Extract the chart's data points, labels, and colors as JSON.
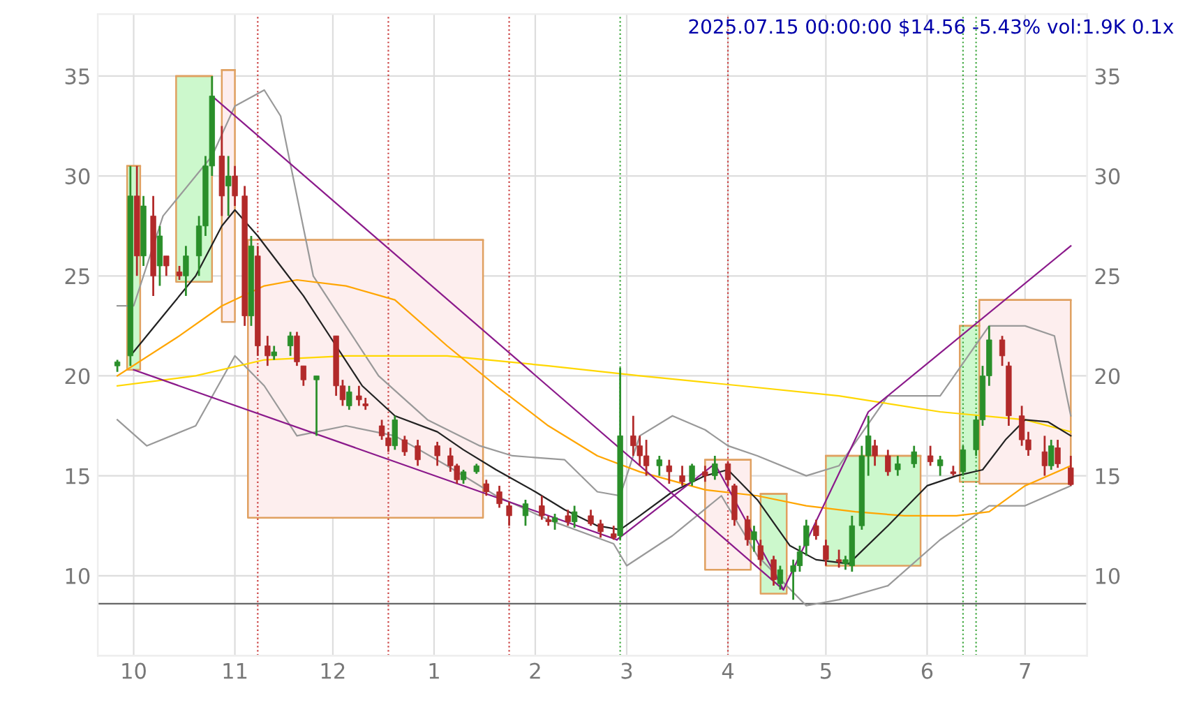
{
  "chart_data": {
    "type": "candlestick",
    "title": "2025.07.15 00:00:00 $14.56 -5.43% vol:1.9K 0.1x",
    "x": [
      "2024-09-26",
      "2024-09-30",
      "2024-10-02",
      "2024-10-04",
      "2024-10-07",
      "2024-10-09",
      "2024-10-11",
      "2024-10-15",
      "2024-10-17",
      "2024-10-21",
      "2024-10-23",
      "2024-10-25",
      "2024-10-28",
      "2024-10-30",
      "2024-11-01",
      "2024-11-04",
      "2024-11-06",
      "2024-11-08",
      "2024-11-11",
      "2024-11-13",
      "2024-11-18",
      "2024-11-20",
      "2024-11-22",
      "2024-11-26",
      "2024-12-02",
      "2024-12-04",
      "2024-12-06",
      "2024-12-09",
      "2024-12-11",
      "2024-12-16",
      "2024-12-18",
      "2024-12-20",
      "2024-12-23",
      "2024-12-27",
      "2025-01-02",
      "2025-01-06",
      "2025-01-08",
      "2025-01-10",
      "2025-01-14",
      "2025-01-17",
      "2025-01-21",
      "2025-01-24",
      "2025-01-29",
      "2025-02-03",
      "2025-02-05",
      "2025-02-07",
      "2025-02-11",
      "2025-02-13",
      "2025-02-18",
      "2025-02-21",
      "2025-02-25",
      "2025-02-27",
      "2025-03-03",
      "2025-03-05",
      "2025-03-07",
      "2025-03-11",
      "2025-03-14",
      "2025-03-18",
      "2025-03-21",
      "2025-03-25",
      "2025-03-28",
      "2025-04-01",
      "2025-04-03",
      "2025-04-07",
      "2025-04-09",
      "2025-04-11",
      "2025-04-15",
      "2025-04-17",
      "2025-04-21",
      "2025-04-23",
      "2025-04-25",
      "2025-04-28",
      "2025-05-01",
      "2025-05-05",
      "2025-05-07",
      "2025-05-09",
      "2025-05-12",
      "2025-05-14",
      "2025-05-16",
      "2025-05-20",
      "2025-05-23",
      "2025-05-28",
      "2025-06-02",
      "2025-06-05",
      "2025-06-09",
      "2025-06-12",
      "2025-06-16",
      "2025-06-18",
      "2025-06-20",
      "2025-06-24",
      "2025-06-26",
      "2025-06-30",
      "2025-07-02",
      "2025-07-07",
      "2025-07-09",
      "2025-07-11",
      "2025-07-15"
    ],
    "ohlc": [
      [
        20.5,
        20.8,
        20.2,
        20.7
      ],
      [
        21,
        30.5,
        20.5,
        29
      ],
      [
        29,
        30.5,
        25,
        26
      ],
      [
        26,
        29,
        25.5,
        28.5
      ],
      [
        28,
        29,
        24,
        25
      ],
      [
        25.5,
        27.5,
        24.5,
        27
      ],
      [
        26,
        26,
        25,
        25.5
      ],
      [
        25.2,
        25.5,
        24.8,
        25
      ],
      [
        25,
        26.5,
        24,
        26
      ],
      [
        26,
        28,
        25,
        27.5
      ],
      [
        27.5,
        31,
        27,
        30.5
      ],
      [
        30.5,
        35,
        30,
        34
      ],
      [
        31,
        32.5,
        28,
        29
      ],
      [
        29.5,
        31,
        28,
        30
      ],
      [
        30,
        30.5,
        28.5,
        29
      ],
      [
        29,
        29.5,
        22.5,
        23
      ],
      [
        23,
        27,
        22.5,
        26.5
      ],
      [
        26,
        26.5,
        21,
        21.5
      ],
      [
        21.5,
        22,
        20.5,
        21
      ],
      [
        21,
        21.5,
        20.8,
        21.2
      ],
      [
        21.5,
        22.2,
        21,
        22
      ],
      [
        22,
        22.2,
        20.5,
        20.7
      ],
      [
        20.5,
        20.5,
        19.5,
        19.8
      ],
      [
        19.8,
        20,
        17,
        20
      ],
      [
        22,
        22,
        19,
        19.5
      ],
      [
        19.5,
        19.8,
        18.5,
        18.8
      ],
      [
        18.5,
        19.5,
        18.3,
        19.2
      ],
      [
        19,
        19.5,
        18.5,
        18.8
      ],
      [
        18.6,
        18.9,
        18.3,
        18.5
      ],
      [
        17.5,
        17.8,
        16.8,
        17
      ],
      [
        16.9,
        17.2,
        16.2,
        16.5
      ],
      [
        16.5,
        18,
        16.3,
        17.8
      ],
      [
        16.8,
        17,
        16,
        16.2
      ],
      [
        16.5,
        16.8,
        15.5,
        15.8
      ],
      [
        16.5,
        16.7,
        15.5,
        16
      ],
      [
        16,
        16.4,
        15.2,
        15.5
      ],
      [
        15.5,
        15.6,
        14.6,
        14.8
      ],
      [
        14.8,
        15.3,
        14.6,
        15.2
      ],
      [
        15.2,
        15.6,
        15.1,
        15.5
      ],
      [
        14.6,
        14.8,
        14,
        14.2
      ],
      [
        14.2,
        14.5,
        13.4,
        13.6
      ],
      [
        13.5,
        13.7,
        12.5,
        13
      ],
      [
        13,
        13.8,
        12.5,
        13.6
      ],
      [
        13.5,
        14,
        12.8,
        13
      ],
      [
        12.8,
        13,
        12.5,
        12.7
      ],
      [
        12.7,
        13.1,
        12.3,
        12.9
      ],
      [
        13,
        13.3,
        12.5,
        12.7
      ],
      [
        12.7,
        13.5,
        12.4,
        13.2
      ],
      [
        13,
        13.3,
        12.5,
        12.6
      ],
      [
        12.6,
        12.8,
        11.9,
        12.2
      ],
      [
        12.1,
        12.5,
        11.8,
        11.9
      ],
      [
        12,
        20.4,
        11.8,
        17
      ],
      [
        17,
        18,
        16,
        16.5
      ],
      [
        16.5,
        17,
        15.5,
        16
      ],
      [
        16,
        16.8,
        15,
        15.5
      ],
      [
        15.5,
        16,
        15,
        15.8
      ],
      [
        15.5,
        15.8,
        14.6,
        15.2
      ],
      [
        15,
        15.5,
        14.5,
        14.7
      ],
      [
        14.7,
        15.6,
        14.5,
        15.5
      ],
      [
        15.2,
        15.5,
        14.7,
        15
      ],
      [
        15,
        16,
        14.8,
        15.6
      ],
      [
        15.6,
        15.7,
        14.5,
        14.8
      ],
      [
        14.5,
        14.6,
        12.5,
        12.8
      ],
      [
        12.8,
        13,
        11.5,
        11.8
      ],
      [
        11.8,
        12.5,
        11.2,
        12.2
      ],
      [
        11.5,
        11.8,
        10.5,
        10.8
      ],
      [
        10.8,
        11,
        9.5,
        9.8
      ],
      [
        9.6,
        10.5,
        9.3,
        10.3
      ],
      [
        10.2,
        10.8,
        8.8,
        10.5
      ],
      [
        10.5,
        11.5,
        10.2,
        11.2
      ],
      [
        11.5,
        12.8,
        11,
        12.5
      ],
      [
        12.5,
        12.8,
        11.8,
        12
      ],
      [
        11.5,
        11.8,
        10.5,
        10.8
      ],
      [
        10.8,
        11.3,
        10.4,
        10.7
      ],
      [
        10.6,
        11,
        10.3,
        10.8
      ],
      [
        10.5,
        13,
        10.2,
        12.5
      ],
      [
        12.5,
        16.5,
        12.3,
        16
      ],
      [
        16,
        18,
        15,
        17
      ],
      [
        16.5,
        16.8,
        15.5,
        16
      ],
      [
        16,
        16.3,
        15,
        15.2
      ],
      [
        15.3,
        16,
        15,
        15.6
      ],
      [
        15.6,
        16.5,
        15.4,
        16.2
      ],
      [
        16,
        16.5,
        15.5,
        15.7
      ],
      [
        15.5,
        16,
        15,
        15.8
      ],
      [
        15.2,
        15.5,
        15,
        15.1
      ],
      [
        15.2,
        16.5,
        15,
        16.3
      ],
      [
        16.3,
        18,
        16,
        17.8
      ],
      [
        17.8,
        20.5,
        17.5,
        20
      ],
      [
        20,
        22.5,
        19.5,
        21.8
      ],
      [
        21.8,
        22,
        20.5,
        21
      ],
      [
        20.5,
        20.7,
        17.5,
        18
      ],
      [
        18,
        18.5,
        16.5,
        16.8
      ],
      [
        16.8,
        17.2,
        16,
        16.3
      ],
      [
        16.2,
        17,
        15,
        15.5
      ],
      [
        15.5,
        16.8,
        15.3,
        16.5
      ],
      [
        16.4,
        16.8,
        15.4,
        15.6
      ],
      [
        15.4,
        16,
        14.5,
        14.56
      ]
    ],
    "colors": [
      "#2a8f2a",
      "#2a8f2a",
      "#b22a2a",
      "#2a8f2a",
      "#b22a2a",
      "#2a8f2a",
      "#b22a2a",
      "#b22a2a",
      "#2a8f2a",
      "#2a8f2a",
      "#2a8f2a",
      "#2a8f2a",
      "#b22a2a",
      "#2a8f2a",
      "#b22a2a",
      "#b22a2a",
      "#2a8f2a",
      "#b22a2a",
      "#b22a2a",
      "#2a8f2a",
      "#2a8f2a",
      "#b22a2a",
      "#b22a2a",
      "#2a8f2a",
      "#b22a2a",
      "#b22a2a",
      "#2a8f2a",
      "#b22a2a",
      "#b22a2a",
      "#b22a2a",
      "#b22a2a",
      "#2a8f2a",
      "#b22a2a",
      "#b22a2a",
      "#b22a2a",
      "#b22a2a",
      "#b22a2a",
      "#2a8f2a",
      "#2a8f2a",
      "#b22a2a",
      "#b22a2a",
      "#b22a2a",
      "#2a8f2a",
      "#b22a2a",
      "#b22a2a",
      "#2a8f2a",
      "#b22a2a",
      "#2a8f2a",
      "#b22a2a",
      "#b22a2a",
      "#b22a2a",
      "#2a8f2a",
      "#b22a2a",
      "#b22a2a",
      "#b22a2a",
      "#2a8f2a",
      "#b22a2a",
      "#b22a2a",
      "#2a8f2a",
      "#b22a2a",
      "#2a8f2a",
      "#b22a2a",
      "#b22a2a",
      "#b22a2a",
      "#2a8f2a",
      "#b22a2a",
      "#b22a2a",
      "#2a8f2a",
      "#2a8f2a",
      "#2a8f2a",
      "#2a8f2a",
      "#b22a2a",
      "#b22a2a",
      "#b22a2a",
      "#2a8f2a",
      "#2a8f2a",
      "#2a8f2a",
      "#2a8f2a",
      "#b22a2a",
      "#b22a2a",
      "#2a8f2a",
      "#2a8f2a",
      "#b22a2a",
      "#2a8f2a",
      "#b22a2a",
      "#2a8f2a",
      "#2a8f2a",
      "#2a8f2a",
      "#2a8f2a",
      "#b22a2a",
      "#b22a2a",
      "#b22a2a",
      "#b22a2a",
      "#b22a2a",
      "#2a8f2a",
      "#b22a2a",
      "#b22a2a"
    ],
    "series": [
      {
        "type": "line",
        "color": "#e0a060",
        "colors": [
          "#ccf8cc",
          "#ccf8cc"
        ],
        "x": [
          "2024-09-29",
          "2024-10-03"
        ],
        "values": [
          30.5,
          30.5
        ],
        "lower": [
          20.3,
          20.3
        ],
        "upper": [
          30.5,
          30.5
        ]
      },
      {
        "type": "line",
        "color": "#e0a060",
        "colors": [
          "#ccf8cc",
          "#ccf8cc"
        ],
        "x": [
          "2024-10-14",
          "2024-10-25"
        ],
        "values": [
          35,
          35
        ],
        "lower": [
          24.7,
          24.7
        ],
        "upper": [
          35,
          35
        ]
      },
      {
        "type": "line",
        "color": "#e0a060",
        "colors": [
          "#fdeeee",
          "#fdeeee"
        ],
        "x": [
          "2024-10-28",
          "2024-11-01"
        ],
        "values": [
          35.3,
          35.3
        ],
        "lower": [
          22.7,
          22.7
        ],
        "upper": [
          35.3,
          35.3
        ]
      },
      {
        "type": "line",
        "color": "#e0a060",
        "colors": [
          "#fdeeee",
          "#fdeeee"
        ],
        "x": [
          "2024-11-05",
          "2025-01-16"
        ],
        "values": [
          26.8,
          26.8
        ],
        "lower": [
          12.9,
          12.9
        ],
        "upper": [
          26.8,
          26.8
        ]
      },
      {
        "type": "line",
        "color": "#e0a060",
        "colors": [
          "#fdeeee",
          "#fdeeee"
        ],
        "x": [
          "2025-03-25",
          "2025-04-08"
        ],
        "values": [
          15.8,
          15.8
        ],
        "lower": [
          10.3,
          10.3
        ],
        "upper": [
          15.8,
          15.8
        ]
      },
      {
        "type": "line",
        "color": "#e0a060",
        "colors": [
          "#ccf8cc",
          "#ccf8cc"
        ],
        "x": [
          "2025-04-11",
          "2025-04-19"
        ],
        "values": [
          14.1,
          14.1
        ],
        "lower": [
          9.1,
          9.1
        ],
        "upper": [
          14.1,
          14.1
        ]
      },
      {
        "type": "line",
        "color": "#e0a060",
        "colors": [
          "#ccf8cc",
          "#ccf8cc"
        ],
        "x": [
          "2025-05-01",
          "2025-05-30"
        ],
        "values": [
          16,
          16
        ],
        "lower": [
          10.5,
          10.5
        ],
        "upper": [
          16,
          16
        ]
      },
      {
        "type": "line",
        "color": "#e0a060",
        "colors": [
          "#ccf8cc",
          "#ccf8cc"
        ],
        "x": [
          "2025-06-11",
          "2025-06-17"
        ],
        "values": [
          22.5,
          22.5
        ],
        "lower": [
          14.7,
          14.7
        ],
        "upper": [
          22.5,
          22.5
        ]
      },
      {
        "type": "line",
        "color": "#e0a060",
        "colors": [
          "#fdeeee",
          "#fdeeee"
        ],
        "x": [
          "2025-06-17",
          "2025-07-15"
        ],
        "values": [
          23.8,
          23.8
        ],
        "lower": [
          14.6,
          14.6
        ],
        "upper": [
          23.8,
          23.8
        ]
      },
      {
        "type": "line",
        "color": "#999999",
        "x": [
          "2024-09-26",
          "2024-10-01",
          "2024-10-10",
          "2024-10-25",
          "2024-11-01",
          "2024-11-10",
          "2024-11-15",
          "2024-11-25",
          "2024-12-05",
          "2024-12-15",
          "2024-12-30",
          "2025-01-15",
          "2025-01-25",
          "2025-02-10",
          "2025-02-20",
          "2025-02-27",
          "2025-03-05",
          "2025-03-15",
          "2025-03-25",
          "2025-04-01",
          "2025-04-10",
          "2025-04-25",
          "2025-05-05",
          "2025-05-20",
          "2025-06-05",
          "2025-06-20",
          "2025-07-01",
          "2025-07-10",
          "2025-07-15"
        ],
        "values": [
          23.5,
          23.5,
          28,
          31,
          33.5,
          34.3,
          33,
          25,
          22.5,
          20,
          17.8,
          16.5,
          16,
          15.8,
          14.2,
          14,
          17,
          18,
          17.3,
          16.5,
          16,
          15,
          15.5,
          19,
          19,
          22.5,
          22.5,
          22,
          18
        ]
      },
      {
        "type": "line",
        "color": "#999999",
        "x": [
          "2024-09-26",
          "2024-10-05",
          "2024-10-20",
          "2024-11-01",
          "2024-11-10",
          "2024-11-20",
          "2024-12-05",
          "2024-12-20",
          "2025-01-05",
          "2025-01-20",
          "2025-02-05",
          "2025-02-25",
          "2025-03-01",
          "2025-03-15",
          "2025-03-30",
          "2025-04-10",
          "2025-04-25",
          "2025-05-05",
          "2025-05-20",
          "2025-06-05",
          "2025-06-20",
          "2025-07-01",
          "2025-07-15"
        ],
        "values": [
          17.8,
          16.5,
          17.5,
          21,
          19.5,
          17,
          17.5,
          17,
          15.5,
          14,
          12.8,
          11.6,
          10.5,
          12,
          14,
          11,
          8.5,
          8.8,
          9.5,
          11.8,
          13.5,
          13.5,
          14.5
        ]
      },
      {
        "type": "line",
        "color": "#ffd700",
        "x": [
          "2024-09-26",
          "2024-10-20",
          "2024-11-10",
          "2024-12-05",
          "2025-01-05",
          "2025-02-05",
          "2025-03-05",
          "2025-04-05",
          "2025-05-05",
          "2025-06-05",
          "2025-07-01",
          "2025-07-15"
        ],
        "values": [
          19.5,
          20,
          20.8,
          21,
          21,
          20.5,
          20,
          19.5,
          19,
          18.2,
          17.8,
          17.2
        ]
      },
      {
        "type": "line",
        "color": "#ffa500",
        "x": [
          "2024-09-26",
          "2024-10-15",
          "2024-10-28",
          "2024-11-10",
          "2024-11-20",
          "2024-12-05",
          "2024-12-20",
          "2025-01-05",
          "2025-01-20",
          "2025-02-05",
          "2025-02-20",
          "2025-03-05",
          "2025-03-25",
          "2025-04-10",
          "2025-04-25",
          "2025-05-10",
          "2025-05-25",
          "2025-06-10",
          "2025-06-20",
          "2025-07-01",
          "2025-07-15"
        ],
        "values": [
          20,
          22,
          23.5,
          24.5,
          24.8,
          24.5,
          23.8,
          21.5,
          19.5,
          17.5,
          16,
          15.2,
          14.3,
          14,
          13.5,
          13.2,
          13,
          13,
          13.2,
          14.5,
          15.5
        ]
      },
      {
        "type": "line",
        "color": "#222222",
        "x": [
          "2024-09-30",
          "2024-10-10",
          "2024-10-20",
          "2024-10-28",
          "2024-11-01",
          "2024-11-08",
          "2024-11-15",
          "2024-11-22",
          "2024-12-02",
          "2024-12-10",
          "2024-12-20",
          "2025-01-02",
          "2025-01-10",
          "2025-01-20",
          "2025-02-01",
          "2025-02-10",
          "2025-02-20",
          "2025-02-27",
          "2025-03-05",
          "2025-03-15",
          "2025-03-25",
          "2025-04-01",
          "2025-04-10",
          "2025-04-20",
          "2025-04-28",
          "2025-05-08",
          "2025-05-20",
          "2025-06-01",
          "2025-06-10",
          "2025-06-18",
          "2025-06-25",
          "2025-07-01",
          "2025-07-08",
          "2025-07-15"
        ],
        "values": [
          21,
          23,
          25,
          27.5,
          28.3,
          27,
          25.5,
          24,
          21.5,
          19.5,
          18,
          17.2,
          16.3,
          15.3,
          14.2,
          13.3,
          12.5,
          12.3,
          13,
          14.2,
          15,
          15.3,
          13.8,
          11.5,
          10.8,
          10.6,
          12.5,
          14.5,
          15,
          15.3,
          16.8,
          17.8,
          17.7,
          17
        ]
      },
      {
        "type": "line",
        "color": "#8b1a8b",
        "x": [
          "2024-10-25",
          "2025-04-18"
        ],
        "values": [
          34,
          9.3
        ]
      },
      {
        "type": "line",
        "color": "#8b1a8b",
        "x": [
          "2024-10-01",
          "2025-02-26"
        ],
        "values": [
          20.3,
          11.8
        ]
      },
      {
        "type": "line",
        "color": "#8b1a8b",
        "x": [
          "2025-02-26",
          "2025-03-28",
          "2025-04-18",
          "2025-05-14",
          "2025-07-15"
        ],
        "values": [
          11.8,
          15.6,
          9.3,
          18.2,
          26.5
        ]
      }
    ],
    "ref_lines": [
      {
        "axis": "y",
        "value": 8.6,
        "color": "#666666"
      },
      {
        "axis": "x",
        "value": "2024-11-08",
        "color": "#cc4444",
        "line_style": "dotted"
      },
      {
        "axis": "x",
        "value": "2024-12-18",
        "color": "#cc4444",
        "line_style": "dotted"
      },
      {
        "axis": "x",
        "value": "2025-01-24",
        "color": "#cc4444",
        "line_style": "dotted"
      },
      {
        "axis": "x",
        "value": "2025-04-01",
        "color": "#cc4444",
        "line_style": "dotted"
      },
      {
        "axis": "x",
        "value": "2025-02-27",
        "color": "#44aa44",
        "line_style": "dotted"
      },
      {
        "axis": "x",
        "value": "2025-06-12",
        "color": "#44aa44",
        "line_style": "dotted"
      },
      {
        "axis": "x",
        "value": "2025-06-16",
        "color": "#44aa44",
        "line_style": "dotted"
      }
    ],
    "xlim": [
      "2024-09-20",
      "2025-07-20"
    ],
    "xticks": [
      {
        "value": "2024-10-01",
        "label": "10"
      },
      {
        "value": "2024-11-01",
        "label": "11"
      },
      {
        "value": "2024-12-01",
        "label": "12"
      },
      {
        "value": "2025-01-01",
        "label": "1"
      },
      {
        "value": "2025-02-01",
        "label": "2"
      },
      {
        "value": "2025-03-01",
        "label": "3"
      },
      {
        "value": "2025-04-01",
        "label": "4"
      },
      {
        "value": "2025-05-01",
        "label": "5"
      },
      {
        "value": "2025-06-01",
        "label": "6"
      },
      {
        "value": "2025-07-01",
        "label": "7"
      }
    ],
    "ylim": [
      6,
      38.1
    ],
    "yticks": [
      10,
      15,
      20,
      25,
      30,
      35
    ],
    "y2lim": [
      6,
      38.1
    ],
    "y2ticks": [
      10,
      15,
      20,
      25,
      30,
      35
    ],
    "grid": true
  }
}
